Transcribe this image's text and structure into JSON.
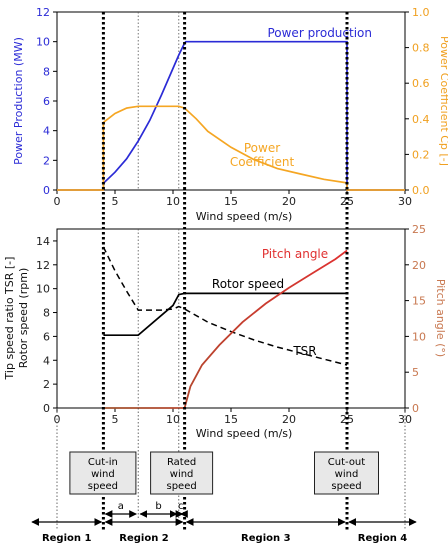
{
  "chart_data": [
    {
      "type": "line",
      "xlabel": "Wind speed (m/s)",
      "ylabel_left": "Power Production (MW)",
      "ylabel_right": "Power Coefficient Cp [-]",
      "xlim": [
        0,
        30
      ],
      "ylim_left": [
        0,
        12
      ],
      "ylim_right": [
        0,
        1.0
      ],
      "xticks": [
        "0",
        "5",
        "10",
        "15",
        "20",
        "25",
        "30"
      ],
      "yticks_left": [
        "0",
        "2",
        "4",
        "6",
        "8",
        "10",
        "12"
      ],
      "yticks_right": [
        "0.0",
        "0.2",
        "0.4",
        "0.6",
        "0.8",
        "1.0"
      ],
      "colors": {
        "power": "#2b2bd6",
        "cp": "#f5a623",
        "right_axis": "#f0a020",
        "left_axis": "#2b2bd6"
      },
      "series": [
        {
          "name": "Power production",
          "axis": "left",
          "x": [
            0,
            4,
            4,
            5,
            6,
            7,
            8,
            9,
            10,
            10.5,
            11,
            11.1,
            25,
            25,
            30
          ],
          "y": [
            0,
            0,
            0.45,
            1.2,
            2.1,
            3.3,
            4.7,
            6.4,
            8.2,
            9.1,
            9.9,
            10.0,
            10.0,
            0,
            0
          ]
        },
        {
          "name": "Power\nCoefficient",
          "axis": "right",
          "x": [
            0,
            4,
            4,
            5,
            6,
            7,
            8,
            9,
            10,
            10.5,
            11,
            12,
            13,
            15,
            17,
            19,
            21,
            23,
            25,
            25,
            30
          ],
          "y": [
            0,
            0,
            0.38,
            0.43,
            0.46,
            0.47,
            0.47,
            0.47,
            0.47,
            0.47,
            0.46,
            0.4,
            0.33,
            0.24,
            0.17,
            0.12,
            0.09,
            0.06,
            0.04,
            0,
            0
          ]
        }
      ],
      "series_labels": {
        "power": "Power production",
        "cp_line1": "Power",
        "cp_line2": "Coefficient"
      }
    },
    {
      "type": "line",
      "xlabel": "Wind speed (m/s)",
      "ylabel_left_line1": "Tip speed ratio TSR [-]",
      "ylabel_left_line2": "Rotor speed (rpm)",
      "ylabel_right": "Pitch angle (°)",
      "xlim": [
        0,
        30
      ],
      "ylim_left": [
        0,
        15
      ],
      "ylim_right": [
        0,
        25
      ],
      "xticks": [
        "0",
        "5",
        "10",
        "15",
        "20",
        "25",
        "30"
      ],
      "yticks_left": [
        "0",
        "2",
        "4",
        "6",
        "8",
        "10",
        "12",
        "14"
      ],
      "yticks_right": [
        "0",
        "5",
        "10",
        "15",
        "20",
        "25"
      ],
      "colors": {
        "rotor": "#000000",
        "tsr": "#000000",
        "pitch": "#e03030",
        "right_axis": "#c87850"
      },
      "series": [
        {
          "name": "Rotor speed",
          "axis": "left",
          "x": [
            4,
            7,
            10,
            10.5,
            11,
            25
          ],
          "y": [
            6.1,
            6.1,
            8.6,
            9.5,
            9.6,
            9.6
          ]
        },
        {
          "name": "TSR",
          "axis": "left",
          "x": [
            4,
            5,
            6,
            7,
            8,
            9,
            10,
            10.5,
            11,
            13,
            15,
            17,
            19,
            21,
            23,
            25
          ],
          "y": [
            13.5,
            11.5,
            9.8,
            8.2,
            8.2,
            8.2,
            8.3,
            8.5,
            8.3,
            7.2,
            6.4,
            5.7,
            5.1,
            4.6,
            4.1,
            3.6
          ]
        },
        {
          "name": "Pitch angle",
          "axis": "right",
          "x": [
            4,
            11,
            11.5,
            12.5,
            14,
            16,
            18,
            20,
            22,
            24,
            25
          ],
          "y": [
            0,
            0,
            3.0,
            6.0,
            8.8,
            12.0,
            14.6,
            16.8,
            18.8,
            20.8,
            22.0
          ]
        }
      ],
      "series_labels": {
        "rotor": "Rotor speed",
        "tsr": "TSR",
        "pitch": "Pitch angle"
      }
    }
  ],
  "annotations": {
    "boxes": [
      {
        "lines": [
          "Cut-in",
          "wind",
          "speed"
        ]
      },
      {
        "lines": [
          "Rated",
          "wind",
          "speed"
        ]
      },
      {
        "lines": [
          "Cut-out",
          "wind",
          "speed"
        ]
      }
    ],
    "subregions": [
      "a",
      "b",
      "c"
    ],
    "regions": [
      "Region 1",
      "Region 2",
      "Region 3",
      "Region 4"
    ],
    "boundaries_wind_speed": {
      "cut_in": 4,
      "a_end": 7,
      "b_end": 10.5,
      "rated": 11,
      "cut_out": 25
    }
  }
}
